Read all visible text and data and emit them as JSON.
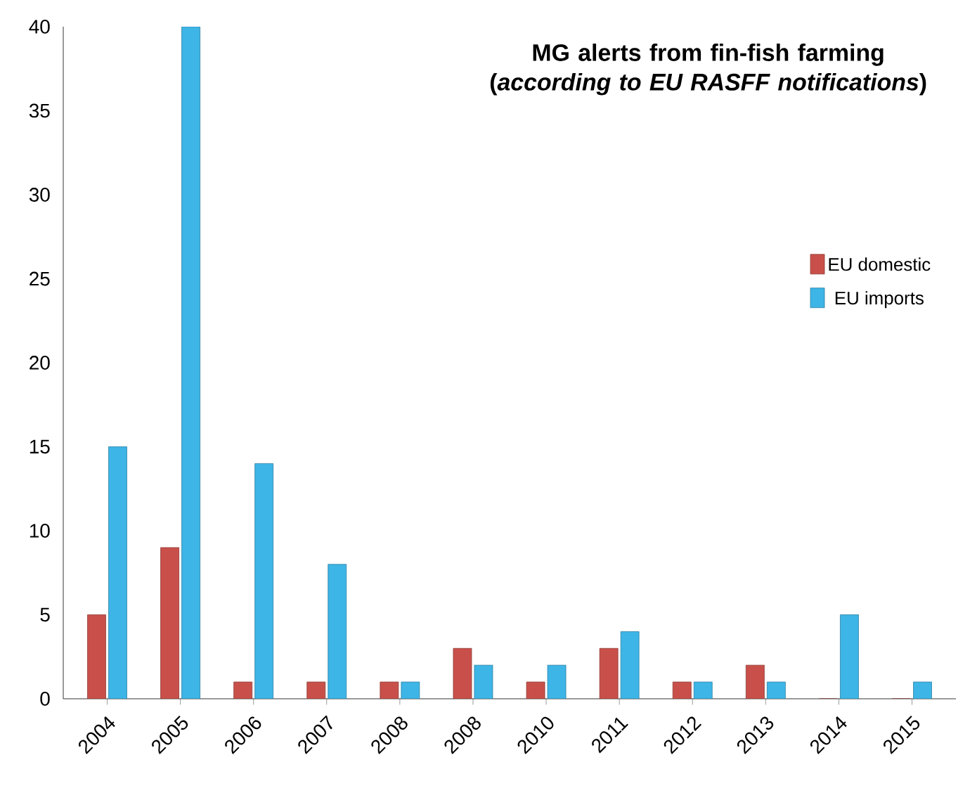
{
  "chart_data": {
    "type": "bar",
    "title": "MG alerts from fin-fish farming (*according to EU RASFF notifications*)",
    "categories": [
      "2004",
      "2005",
      "2006",
      "2007",
      "2008",
      "2008",
      "2010",
      "2011",
      "2012",
      "2013",
      "2014",
      "2015"
    ],
    "series": [
      {
        "name": "EU domestic",
        "color": "#c9504a",
        "values": [
          5,
          9,
          1,
          1,
          1,
          3,
          1,
          3,
          1,
          2,
          0,
          0
        ]
      },
      {
        "name": "EU imports",
        "color": "#3db5e6",
        "values": [
          15,
          40,
          14,
          8,
          1,
          2,
          2,
          4,
          1,
          1,
          5,
          1
        ]
      }
    ],
    "ylim": [
      0,
      40
    ],
    "yticks": [
      0,
      5,
      10,
      15,
      20,
      25,
      30,
      35,
      40
    ],
    "legend": "right"
  }
}
